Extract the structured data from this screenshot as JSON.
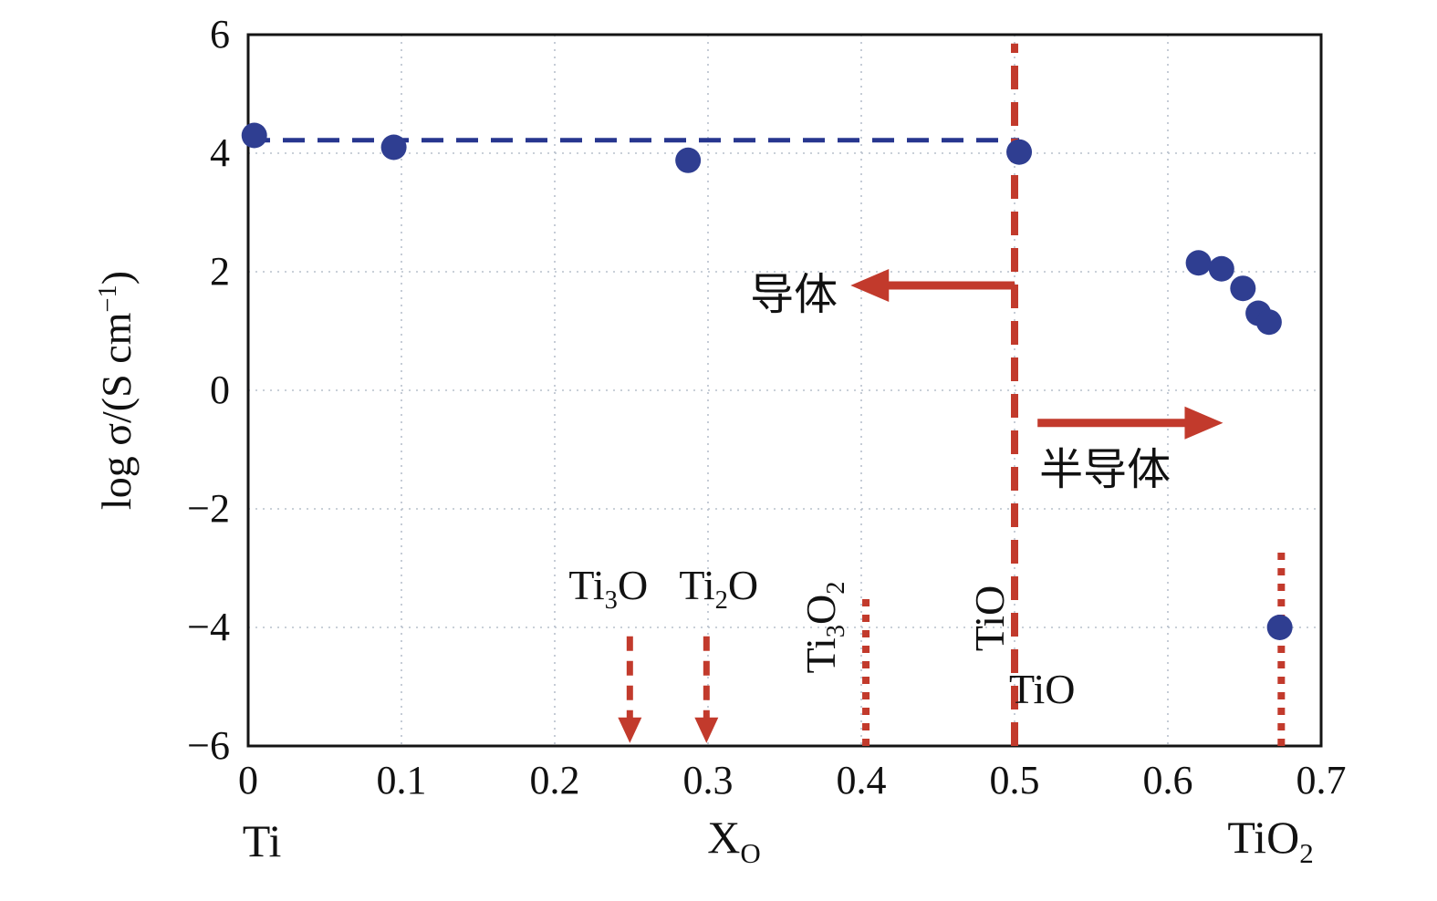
{
  "figure": {
    "background": "#ffffff"
  },
  "chart_data": {
    "type": "scatter",
    "title": "",
    "xlabel_parts": [
      {
        "t": "X"
      },
      {
        "t": "O",
        "sub": true
      }
    ],
    "ylabel_parts": [
      {
        "t": "log σ/(S cm"
      },
      {
        "t": "−1",
        "sup": true
      },
      {
        "t": ")"
      }
    ],
    "xlim": [
      0,
      0.7
    ],
    "ylim": [
      -6,
      6
    ],
    "x_ticks": [
      "0",
      "0.1",
      "0.2",
      "0.3",
      "0.4",
      "0.5",
      "0.6",
      "0.7"
    ],
    "x_tick_values": [
      0,
      0.1,
      0.2,
      0.3,
      0.4,
      0.5,
      0.6,
      0.7
    ],
    "y_ticks": [
      "6",
      "4",
      "2",
      "0",
      "−2",
      "−4",
      "−6"
    ],
    "y_tick_values": [
      6,
      4,
      2,
      0,
      -2,
      -4,
      -6
    ],
    "grid": true,
    "legend": "none",
    "colors": {
      "points": "#2f3e91",
      "metal_line": "#27368f",
      "phase": "#c23a2c",
      "grid": "#b7c0cc",
      "axis": "#141414",
      "text": "#111111"
    },
    "series": [
      {
        "name": "log-conductivity",
        "points": [
          [
            0.004,
            4.3
          ],
          [
            0.095,
            4.1
          ],
          [
            0.287,
            3.88
          ],
          [
            0.503,
            4.02
          ],
          [
            0.62,
            2.15
          ],
          [
            0.635,
            2.05
          ],
          [
            0.649,
            1.72
          ],
          [
            0.659,
            1.3
          ],
          [
            0.666,
            1.15
          ],
          [
            0.673,
            -4.0
          ]
        ]
      }
    ],
    "metal_line": {
      "y": 4.22,
      "x0": 0.0,
      "x1": 0.503
    },
    "phase_boundaries": [
      {
        "name": "tio-boundary-line",
        "x": 0.5,
        "y0": -6,
        "y1": 5.85,
        "style": "dashed",
        "width": 8
      },
      {
        "name": "ti3o2-boundary-line",
        "x": 0.403,
        "y0": -6,
        "y1": -3.5,
        "style": "dotted",
        "width": 8
      },
      {
        "name": "tio2-boundary-line",
        "x": 0.674,
        "y0": -6,
        "y1": -2.65,
        "style": "dotted",
        "width": 8
      }
    ],
    "down_arrows": [
      {
        "name": "ti3o-arrow",
        "x": 0.249,
        "y0": -4.15,
        "y1": -5.95
      },
      {
        "name": "ti2o-arrow",
        "x": 0.299,
        "y0": -4.15,
        "y1": -5.95
      }
    ],
    "h_arrows": [
      {
        "name": "conductor-arrow",
        "dir": "left",
        "y": 1.77,
        "x_tail": 0.5,
        "x_head": 0.393
      },
      {
        "name": "semiconductor-arrow",
        "dir": "right",
        "y": -0.55,
        "x_tail": 0.515,
        "x_head": 0.636
      }
    ],
    "annotations": [
      {
        "name": "ti3o-label",
        "parts": [
          {
            "t": "Ti"
          },
          {
            "t": "3",
            "sub": true
          },
          {
            "t": "O"
          }
        ],
        "x": 0.235,
        "y": -3.35,
        "size": 46
      },
      {
        "name": "ti2o-label",
        "parts": [
          {
            "t": "Ti"
          },
          {
            "t": "2",
            "sub": true
          },
          {
            "t": "O"
          }
        ],
        "x": 0.307,
        "y": -3.35,
        "size": 46
      },
      {
        "name": "ti3o2-label",
        "parts": [
          {
            "t": "Ti"
          },
          {
            "t": "3",
            "sub": true
          },
          {
            "t": "O"
          },
          {
            "t": "2",
            "sub": true
          }
        ],
        "x": 0.376,
        "y": -4.0,
        "rotate": -90,
        "size": 46
      },
      {
        "name": "tio-vertical-label",
        "parts": [
          {
            "t": "TiO"
          }
        ],
        "x": 0.484,
        "y": -3.85,
        "rotate": -90,
        "size": 46
      },
      {
        "name": "tio-horizontal-label",
        "parts": [
          {
            "t": "TiO"
          }
        ],
        "x": 0.518,
        "y": -5.05,
        "size": 46
      },
      {
        "name": "conductor-label",
        "parts": [
          {
            "t": "导体"
          }
        ],
        "x": 0.356,
        "y": 1.6,
        "size": 48
      },
      {
        "name": "semiconductor-label",
        "parts": [
          {
            "t": "半导体"
          }
        ],
        "x": 0.559,
        "y": -1.36,
        "size": 48
      }
    ],
    "end_labels": [
      {
        "name": "ti-end-label",
        "parts": [
          {
            "t": "Ti"
          }
        ],
        "x": 0.009
      },
      {
        "name": "x-axis-title",
        "parts": [
          {
            "t": "X"
          },
          {
            "t": "O",
            "sub": true
          }
        ],
        "x": 0.317
      },
      {
        "name": "tio2-end-label",
        "parts": [
          {
            "t": "TiO"
          },
          {
            "t": "2",
            "sub": true
          }
        ],
        "x": 0.667
      }
    ]
  }
}
